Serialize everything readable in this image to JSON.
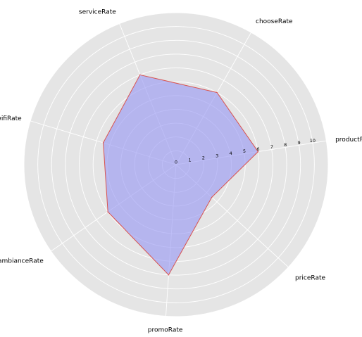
{
  "chart_data": {
    "type": "radar",
    "categories": [
      "productRate",
      "priceRate",
      "promoRate",
      "ambianceRate",
      "wifiRate",
      "serviceRate",
      "chooseRate"
    ],
    "values": [
      6,
      3.5,
      8,
      6,
      5.5,
      7,
      6
    ],
    "rlim": [
      0,
      11
    ],
    "rticks": [
      "0",
      "1",
      "2",
      "3",
      "4",
      "5",
      "6",
      "7",
      "8",
      "9",
      "10"
    ],
    "grid": true,
    "colors": {
      "background": "#e5e5e5",
      "grid": "#ffffff",
      "fill": "#9b9bf2",
      "line": "#d9534f"
    }
  }
}
